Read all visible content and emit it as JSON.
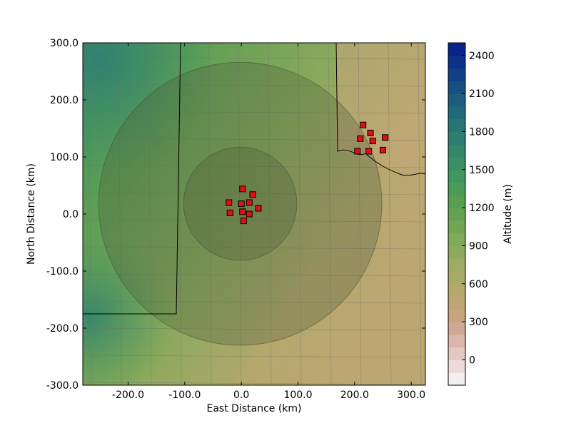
{
  "map": {
    "xlabel": "East Distance (km)",
    "ylabel": "North Distance (km)",
    "xlim": [
      -280,
      325
    ],
    "ylim": [
      -300,
      300
    ],
    "x_ticks": [
      {
        "value": -200,
        "label": "-200.0"
      },
      {
        "value": -100,
        "label": "-100.0"
      },
      {
        "value": 0,
        "label": "0.0"
      },
      {
        "value": 100,
        "label": "100.0"
      },
      {
        "value": 200,
        "label": "200.0"
      },
      {
        "value": 300,
        "label": "300.0"
      }
    ],
    "y_ticks": [
      {
        "value": 300,
        "label": "300.0"
      },
      {
        "value": 200,
        "label": "200.0"
      },
      {
        "value": 100,
        "label": "100.0"
      },
      {
        "value": 0,
        "label": "0.0"
      },
      {
        "value": -100,
        "label": "-100.0"
      },
      {
        "value": -200,
        "label": "-200.0"
      },
      {
        "value": -300,
        "label": "-300.0"
      }
    ],
    "range_rings": [
      {
        "center": [
          -2,
          18
        ],
        "radius_km": 100
      },
      {
        "center": [
          -2,
          18
        ],
        "radius_km": 250
      }
    ],
    "ring_fill": "#4d5a3a",
    "station_color": "#dd1111",
    "stations_group_1": [
      [
        2,
        44
      ],
      [
        20,
        34
      ],
      [
        -22,
        20
      ],
      [
        0,
        18
      ],
      [
        14,
        20
      ],
      [
        -20,
        2
      ],
      [
        2,
        4
      ],
      [
        14,
        0
      ],
      [
        30,
        10
      ],
      [
        4,
        -12
      ]
    ],
    "stations_group_2": [
      [
        215,
        156
      ],
      [
        228,
        142
      ],
      [
        210,
        132
      ],
      [
        232,
        128
      ],
      [
        254,
        134
      ],
      [
        205,
        110
      ],
      [
        225,
        110
      ],
      [
        250,
        112
      ]
    ]
  },
  "colorbar": {
    "label": "Altitude (m)",
    "vmin": -200,
    "vmax": 2500,
    "ticks": [
      {
        "value": 2400,
        "label": "2400"
      },
      {
        "value": 2100,
        "label": "2100"
      },
      {
        "value": 1800,
        "label": "1800"
      },
      {
        "value": 1500,
        "label": "1500"
      },
      {
        "value": 1200,
        "label": "1200"
      },
      {
        "value": 900,
        "label": "900"
      },
      {
        "value": 600,
        "label": "600"
      },
      {
        "value": 300,
        "label": "300"
      },
      {
        "value": 0,
        "label": "0"
      }
    ],
    "colors": [
      "#f5eeee",
      "#ecdbd9",
      "#e4c9c3",
      "#dab6ac",
      "#cfa896",
      "#c6a57f",
      "#bea673",
      "#b5a86d",
      "#a9aa68",
      "#9cac64",
      "#8dab5f",
      "#7faa5a",
      "#71a655",
      "#63a252",
      "#569f52",
      "#4a9a58",
      "#41955e",
      "#3a8f66",
      "#33886c",
      "#2d7f72",
      "#277576",
      "#216a7a",
      "#1c5c7e",
      "#174e83",
      "#124086",
      "#0d318a",
      "#09238c"
    ]
  }
}
